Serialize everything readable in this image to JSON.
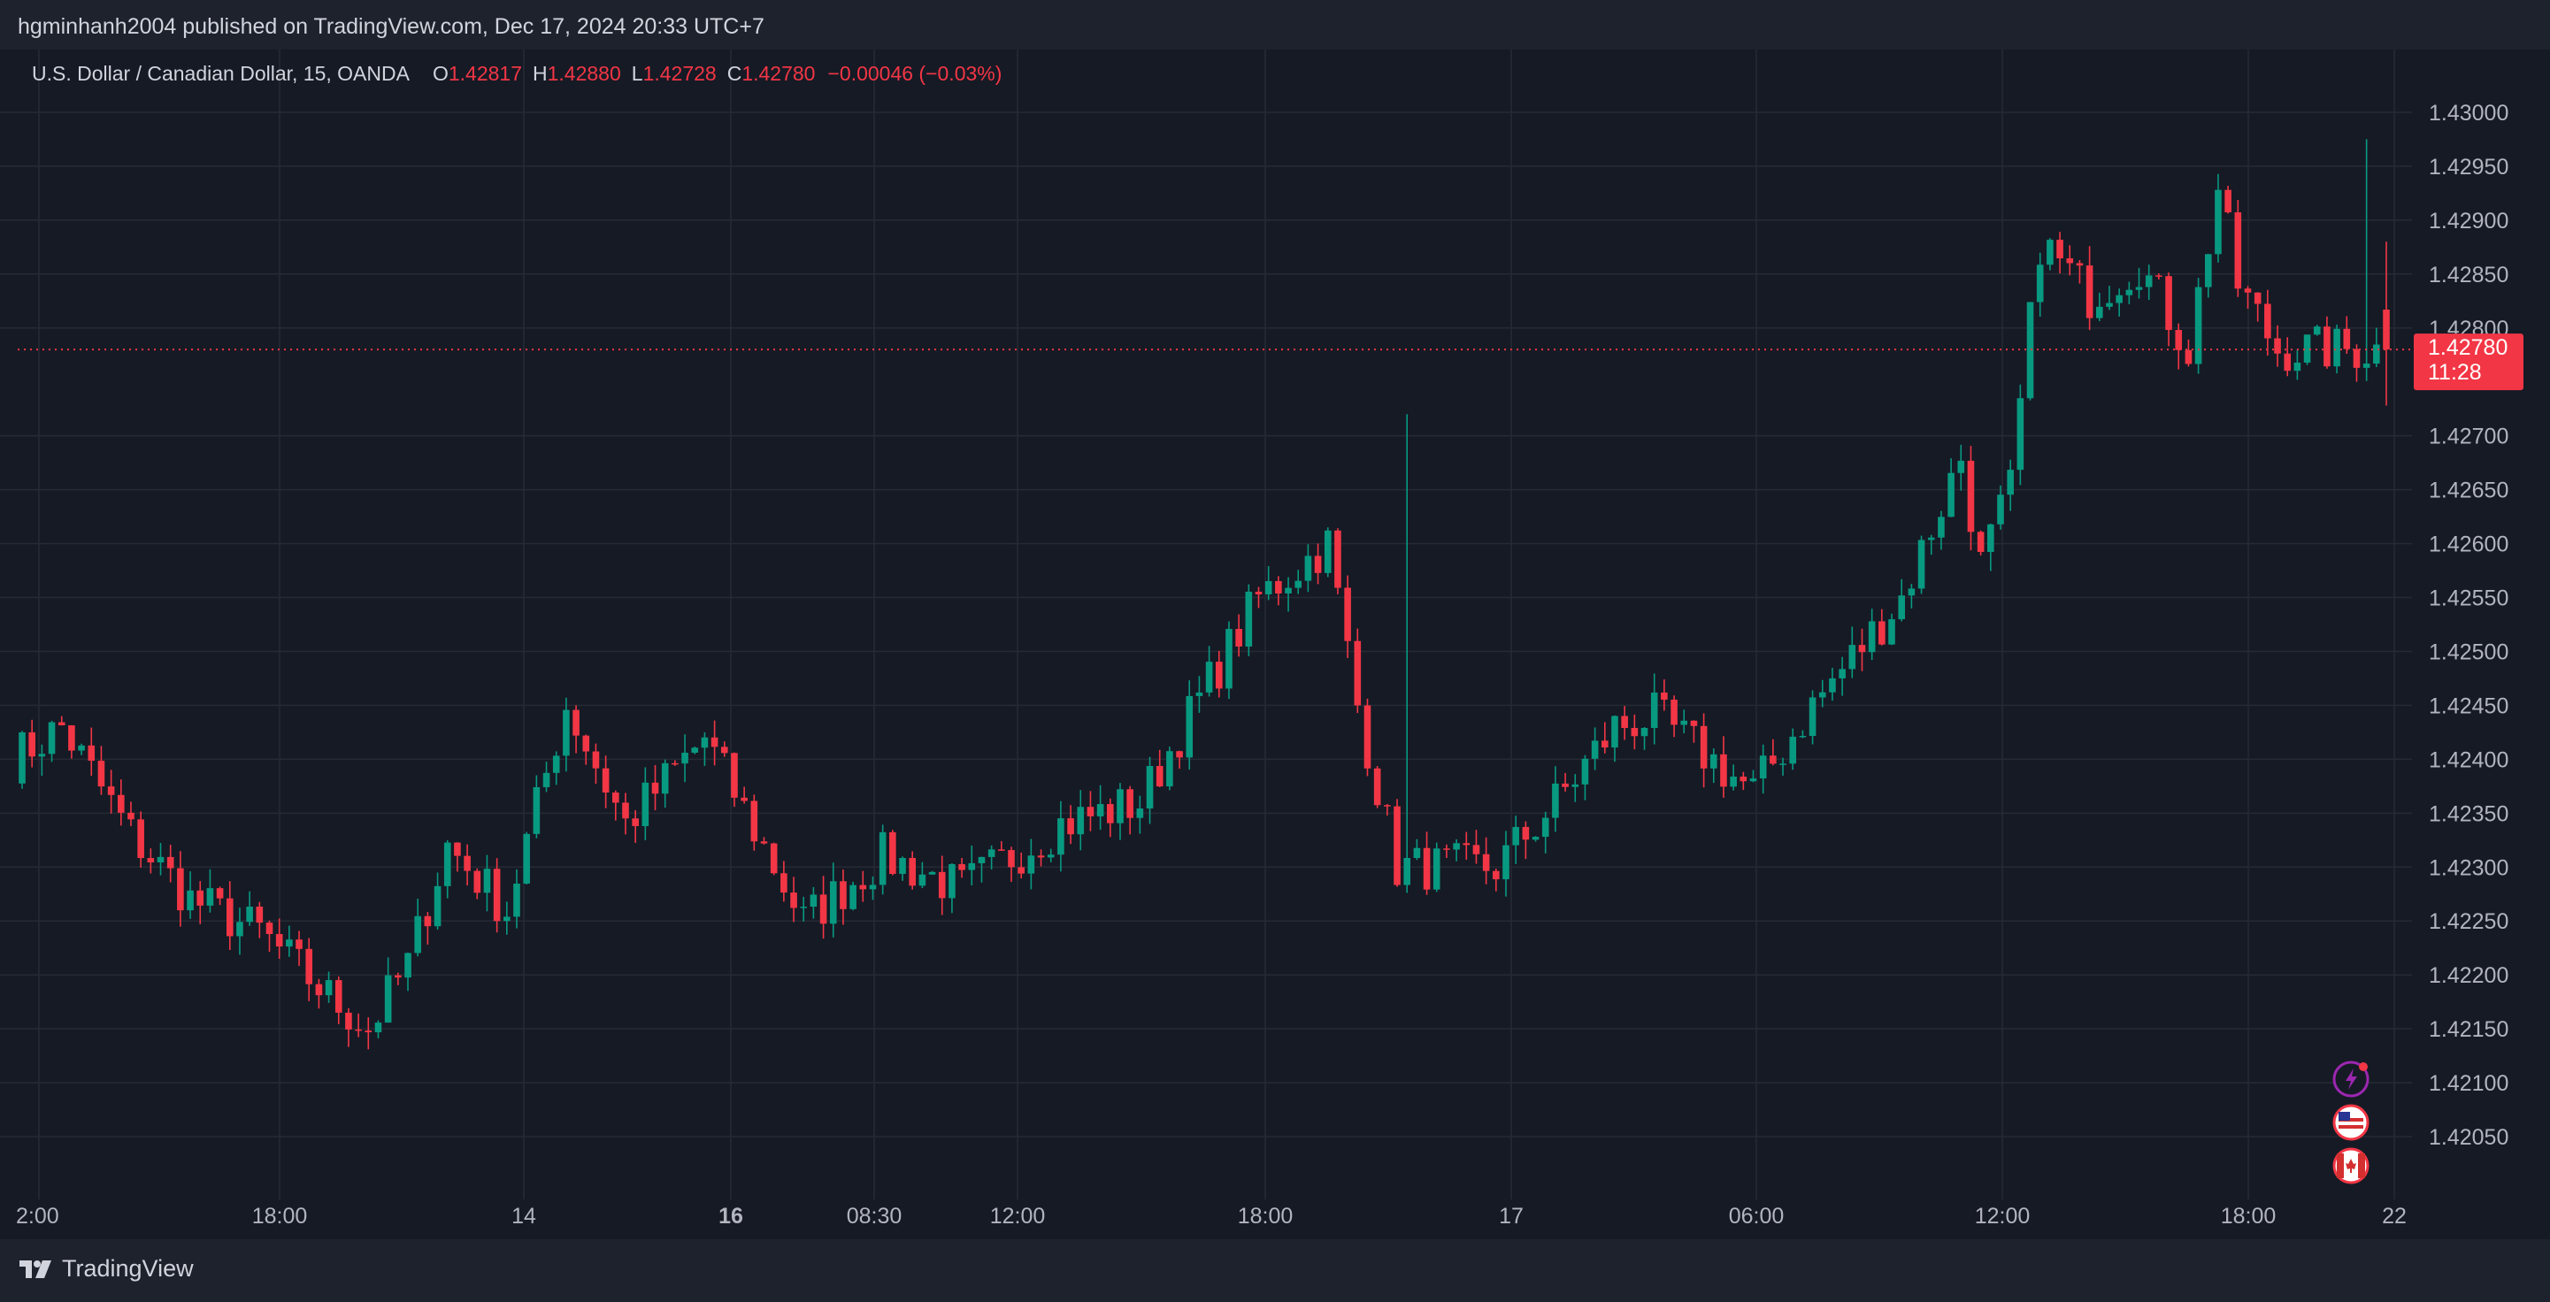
{
  "publisher": "hgminhanh2004 published on TradingView.com, Dec 17, 2024 20:33 UTC+7",
  "legend": {
    "symbol": "U.S. Dollar / Canadian Dollar, 15, OANDA",
    "open_label": "O",
    "open": "1.42817",
    "high_label": "H",
    "high": "1.42880",
    "low_label": "L",
    "low": "1.42728",
    "close_label": "C",
    "close": "1.42780",
    "change": "−0.00046 (−0.03%)"
  },
  "price_tag": {
    "price": "1.42780",
    "countdown": "11:28"
  },
  "footer": {
    "brand": "TradingView"
  },
  "colors": {
    "up": "#089981",
    "down": "#f23645",
    "background": "#161a25",
    "grid": "#262a35",
    "text": "#b2b5be"
  },
  "icons": [
    "lightning-event-icon",
    "us-flag-icon",
    "canada-flag-icon"
  ],
  "chart_data": {
    "type": "candlestick",
    "title": "U.S. Dollar / Canadian Dollar, 15, OANDA",
    "ylim": [
      1.42,
      1.4305
    ],
    "current_price": 1.4278,
    "y_ticks": [
      "1.43000",
      "1.42950",
      "1.42900",
      "1.42850",
      "1.42800",
      "1.42700",
      "1.42650",
      "1.42600",
      "1.42550",
      "1.42500",
      "1.42450",
      "1.42400",
      "1.42350",
      "1.42300",
      "1.42250",
      "1.42200",
      "1.42150",
      "1.42100",
      "1.42050"
    ],
    "x_ticks": [
      {
        "label": "2:00",
        "bold": false
      },
      {
        "label": "18:00",
        "bold": false
      },
      {
        "label": "14",
        "bold": false
      },
      {
        "label": "16",
        "bold": true
      },
      {
        "label": "08:30",
        "bold": false
      },
      {
        "label": "12:00",
        "bold": false
      },
      {
        "label": "18:00",
        "bold": false
      },
      {
        "label": "17",
        "bold": false
      },
      {
        "label": "06:00",
        "bold": false
      },
      {
        "label": "12:00",
        "bold": false
      },
      {
        "label": "18:00",
        "bold": false
      },
      {
        "label": "22",
        "bold": false
      }
    ],
    "candle_count": 240,
    "anchors": [
      [
        0,
        1.424
      ],
      [
        5,
        1.4243
      ],
      [
        12,
        1.4233
      ],
      [
        18,
        1.4227
      ],
      [
        25,
        1.4224
      ],
      [
        32,
        1.4218
      ],
      [
        36,
        1.4215
      ],
      [
        40,
        1.4221
      ],
      [
        44,
        1.4232
      ],
      [
        50,
        1.4226
      ],
      [
        56,
        1.4245
      ],
      [
        62,
        1.4234
      ],
      [
        70,
        1.4242
      ],
      [
        80,
        1.4225
      ],
      [
        88,
        1.4231
      ],
      [
        96,
        1.4228
      ],
      [
        106,
        1.4234
      ],
      [
        114,
        1.4236
      ],
      [
        119,
        1.4244
      ],
      [
        126,
        1.4255
      ],
      [
        133,
        1.426
      ],
      [
        136,
        1.4245
      ],
      [
        140,
        1.423
      ],
      [
        150,
        1.423
      ],
      [
        156,
        1.4236
      ],
      [
        162,
        1.4243
      ],
      [
        166,
        1.4244
      ],
      [
        176,
        1.4237
      ],
      [
        182,
        1.4245
      ],
      [
        191,
        1.4255
      ],
      [
        197,
        1.4268
      ],
      [
        199,
        1.4258
      ],
      [
        202,
        1.4265
      ],
      [
        205,
        1.4288
      ],
      [
        210,
        1.4283
      ],
      [
        215,
        1.4286
      ],
      [
        220,
        1.4278
      ],
      [
        223,
        1.4293
      ],
      [
        225,
        1.4284
      ],
      [
        229,
        1.4278
      ]
    ],
    "annotations": {
      "peak": 1.42975,
      "spike_high": 1.4272
    }
  }
}
